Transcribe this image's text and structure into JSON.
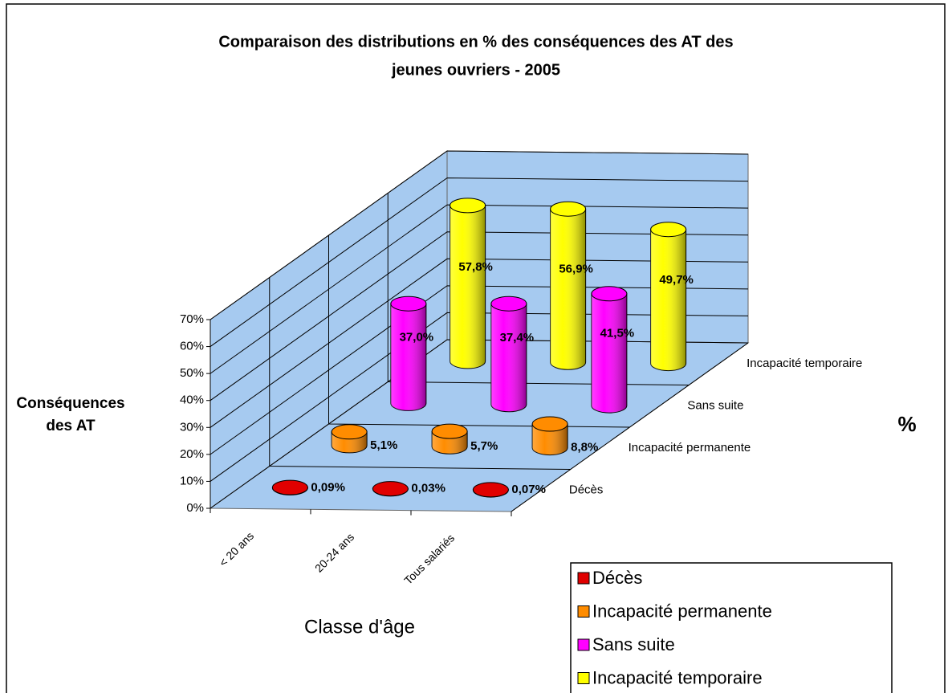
{
  "chart_data": {
    "type": "bar",
    "title": [
      "Comparaison des distributions en % des conséquences des AT des",
      "jeunes ouvriers - 2005"
    ],
    "y_axis_title": [
      "Conséquences",
      "des AT"
    ],
    "x_axis_title": "Classe d'âge",
    "depth_axis_title": "%",
    "categories": [
      "< 20 ans",
      "20-24 ans",
      "Tous salariés"
    ],
    "series": [
      {
        "name": "Décès",
        "color": "#e00000",
        "values": [
          0.09,
          0.03,
          0.07
        ],
        "value_labels": [
          "0,09%",
          "0,03%",
          "0,07%"
        ]
      },
      {
        "name": "Incapacité permanente",
        "color": "#ff8c00",
        "values": [
          5.1,
          5.7,
          8.8
        ],
        "value_labels": [
          "5,1%",
          "5,7%",
          "8,8%"
        ]
      },
      {
        "name": "Sans suite",
        "color": "#ff00ff",
        "values": [
          37.0,
          37.4,
          41.5
        ],
        "value_labels": [
          "37,0%",
          "37,4%",
          "41,5%"
        ]
      },
      {
        "name": "Incapacité temporaire",
        "color": "#ffff00",
        "values": [
          57.8,
          56.9,
          49.7
        ],
        "value_labels": [
          "57,8%",
          "56,9%",
          "49,7%"
        ]
      }
    ],
    "ylim": [
      0,
      70
    ],
    "yticks": [
      {
        "value": 0,
        "label": "0%"
      },
      {
        "value": 10,
        "label": "10%"
      },
      {
        "value": 20,
        "label": "20%"
      },
      {
        "value": 30,
        "label": "30%"
      },
      {
        "value": 40,
        "label": "40%"
      },
      {
        "value": 50,
        "label": "50%"
      },
      {
        "value": 60,
        "label": "60%"
      },
      {
        "value": 70,
        "label": "70%"
      }
    ],
    "grid": true,
    "legend": "bottom-right"
  }
}
